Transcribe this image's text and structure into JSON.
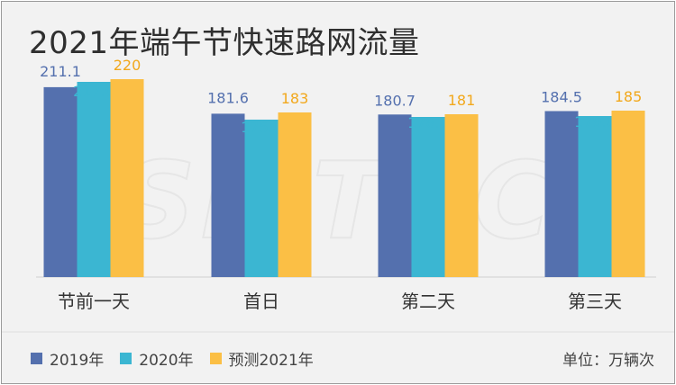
{
  "title": "2021年端午节快速路网流量",
  "unit_label": "单位：万辆次",
  "watermark": "SMTCC",
  "colors": {
    "s2019": "#5470ae",
    "s2020": "#3bb6d2",
    "s2021": "#fbbf45",
    "bg": "#f2f2f2",
    "text": "#333333"
  },
  "chart_data": {
    "type": "bar",
    "title": "2021年端午节快速路网流量",
    "categories": [
      "节前一天",
      "首日",
      "第二天",
      "第三天"
    ],
    "series": [
      {
        "name": "2019年",
        "values": [
          211.1,
          181.6,
          180.7,
          184.5
        ],
        "labels": [
          "211.1",
          "181.6",
          "180.7",
          "184.5"
        ]
      },
      {
        "name": "2020年",
        "values": [
          217.0,
          175.0,
          178.0,
          179.0
        ],
        "labels": [
          "217.0",
          "175.0",
          "178.0",
          "179.0"
        ]
      },
      {
        "name": "预测2021年",
        "values": [
          220,
          183,
          181,
          185
        ],
        "labels": [
          "220",
          "183",
          "181",
          "185"
        ]
      }
    ],
    "ylabel": "",
    "ylim": [
      0,
      225
    ],
    "grid": false,
    "legend": "bottom-left"
  }
}
